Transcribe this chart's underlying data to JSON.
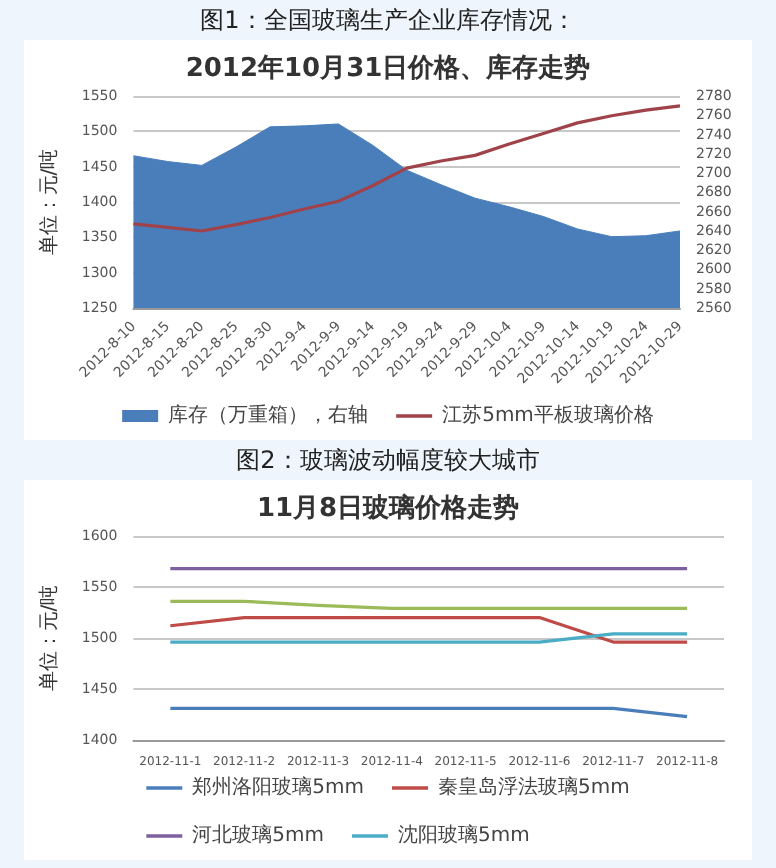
{
  "chart_data": [
    {
      "type": "line",
      "title": "2012年10月31日价格、库存走势",
      "annotations": [
        "图1：全国玻璃生产企业库存情况："
      ],
      "ylabel": "单位：元/吨",
      "categories": [
        "2012-8-10",
        "2012-8-15",
        "2012-8-20",
        "2012-8-25",
        "2012-8-30",
        "2012-9-4",
        "2012-9-9",
        "2012-9-14",
        "2012-9-19",
        "2012-9-24",
        "2012-9-29",
        "2012-10-4",
        "2012-10-9",
        "2012-10-14",
        "2012-10-19",
        "2012-10-24",
        "2012-10-29"
      ],
      "series": [
        {
          "name": "库存（万重箱），右轴",
          "type": "area",
          "axis": "y2",
          "color": "#4a7ebb",
          "values": [
            2718,
            2712,
            2708,
            2727,
            2748,
            2749,
            2751,
            2729,
            2703,
            2688,
            2674,
            2665,
            2655,
            2642,
            2634,
            2635,
            2640
          ]
        },
        {
          "name": "江苏5mm平板玻璃价格",
          "color": "#a0424a",
          "values": [
            1369,
            1364,
            1359,
            1368,
            1378,
            1390,
            1401,
            1423,
            1448,
            1458,
            1466,
            1482,
            1497,
            1512,
            1522,
            1530,
            1536
          ]
        }
      ],
      "ylim": [
        1250,
        1550
      ],
      "yticks": [
        1250,
        1300,
        1350,
        1400,
        1450,
        1500,
        1550
      ],
      "y2lim": [
        2560,
        2780
      ],
      "y2ticks": [
        2560,
        2580,
        2600,
        2620,
        2640,
        2660,
        2680,
        2700,
        2720,
        2740,
        2760,
        2780
      ],
      "grid": "y",
      "legend": "bottom",
      "marker": "none",
      "line_style": "solid"
    },
    {
      "type": "line",
      "title": "11月8日玻璃价格走势",
      "annotations": [
        "图2：玻璃波动幅度较大城市"
      ],
      "ylabel": "单位：元/吨",
      "categories": [
        "2012-11-1",
        "2012-11-2",
        "2012-11-3",
        "2012-11-4",
        "2012-11-5",
        "2012-11-6",
        "2012-11-7",
        "2012-11-8"
      ],
      "series": [
        {
          "name": "郑州洛阳玻璃5mm",
          "color": "#4a7ebb",
          "values": [
            1431,
            1431,
            1431,
            1431,
            1431,
            1431,
            1431,
            1423
          ]
        },
        {
          "name": "秦皇岛浮法玻璃5mm",
          "color": "#be4b48",
          "values": [
            1512,
            1520,
            1520,
            1520,
            1520,
            1520,
            1496,
            1496
          ]
        },
        {
          "name": "河北玻璃5mm",
          "color": "#7d60a0",
          "values": [
            1568,
            1568,
            1568,
            1568,
            1568,
            1568,
            1568,
            1568
          ]
        },
        {
          "name": "沈阳玻璃5mm",
          "color": "#4bacc6",
          "values": [
            1496,
            1496,
            1496,
            1496,
            1496,
            1496,
            1504,
            1504
          ]
        },
        {
          "color": "#9bbb59",
          "values": [
            1536,
            1536,
            1532,
            1529,
            1529,
            1529,
            1529,
            1529
          ]
        }
      ],
      "ylim": [
        1400,
        1600
      ],
      "yticks": [
        1400,
        1450,
        1500,
        1550,
        1600
      ],
      "grid": "y",
      "legend": "bottom",
      "marker": "none",
      "line_style": "solid"
    }
  ]
}
